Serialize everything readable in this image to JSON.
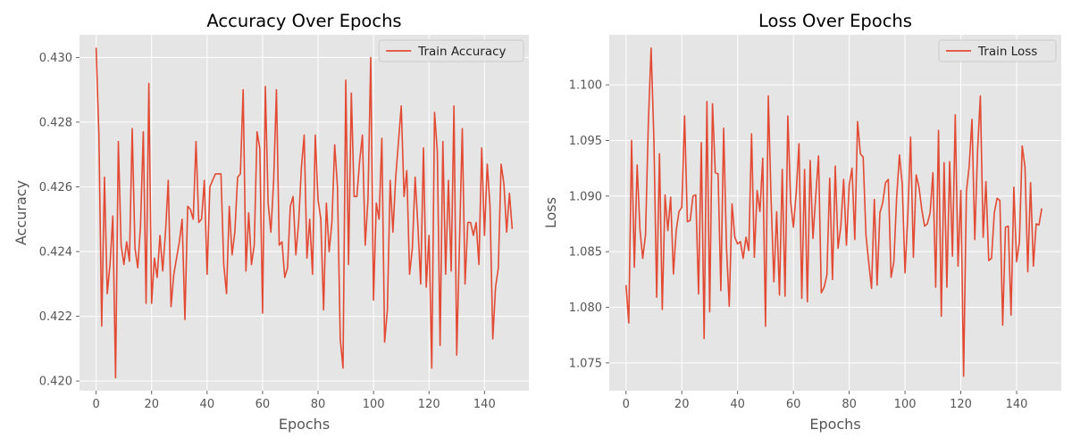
{
  "chart_data": [
    {
      "type": "line",
      "title": "Accuracy Over Epochs",
      "xlabel": "Epochs",
      "ylabel": "Accuracy",
      "xlim": [
        -6,
        156
      ],
      "ylim": [
        0.4197,
        0.4307
      ],
      "xticks": [
        0,
        20,
        40,
        60,
        80,
        100,
        120,
        140
      ],
      "yticks": [
        0.42,
        0.422,
        0.424,
        0.426,
        0.428,
        0.43
      ],
      "tick_decimals": 3,
      "grid": true,
      "legend": "top-right",
      "series": [
        {
          "name": "Train Accuracy",
          "color": "#e24a33",
          "x_start": 0,
          "values": [
            0.4303,
            0.4276,
            0.4217,
            0.4263,
            0.4227,
            0.4236,
            0.4251,
            0.4201,
            0.4274,
            0.4242,
            0.4236,
            0.4243,
            0.4237,
            0.4278,
            0.4241,
            0.4235,
            0.4248,
            0.4277,
            0.4224,
            0.4292,
            0.4224,
            0.4238,
            0.4232,
            0.4245,
            0.4234,
            0.4246,
            0.4262,
            0.4223,
            0.4233,
            0.4238,
            0.4243,
            0.425,
            0.4219,
            0.4254,
            0.4253,
            0.425,
            0.4274,
            0.4249,
            0.425,
            0.4262,
            0.4233,
            0.426,
            0.4262,
            0.4264,
            0.4264,
            0.4264,
            0.4236,
            0.4227,
            0.4254,
            0.4239,
            0.4246,
            0.4263,
            0.4264,
            0.429,
            0.4234,
            0.4252,
            0.4236,
            0.4242,
            0.4277,
            0.4272,
            0.4221,
            0.4291,
            0.4255,
            0.4246,
            0.4262,
            0.429,
            0.4242,
            0.4243,
            0.4232,
            0.4235,
            0.4254,
            0.4257,
            0.4239,
            0.4249,
            0.4266,
            0.4276,
            0.4238,
            0.425,
            0.4233,
            0.4276,
            0.4256,
            0.425,
            0.4222,
            0.4255,
            0.424,
            0.4249,
            0.4273,
            0.426,
            0.4213,
            0.4204,
            0.4293,
            0.4236,
            0.4289,
            0.4257,
            0.4257,
            0.4268,
            0.4276,
            0.4242,
            0.4256,
            0.43,
            0.4225,
            0.4255,
            0.425,
            0.4275,
            0.4212,
            0.4222,
            0.4262,
            0.4246,
            0.4263,
            0.4274,
            0.4285,
            0.4257,
            0.4265,
            0.4233,
            0.4241,
            0.4263,
            0.4248,
            0.423,
            0.4272,
            0.4229,
            0.4245,
            0.4204,
            0.4283,
            0.4271,
            0.4211,
            0.4274,
            0.4233,
            0.4262,
            0.4234,
            0.4285,
            0.4208,
            0.4243,
            0.4278,
            0.423,
            0.4249,
            0.4249,
            0.4245,
            0.4249,
            0.4236,
            0.4272,
            0.4245,
            0.4267,
            0.4254,
            0.4213,
            0.4229,
            0.4235,
            0.4267,
            0.4261,
            0.4246,
            0.4258,
            0.4247
          ]
        }
      ]
    },
    {
      "type": "line",
      "title": "Loss Over Epochs",
      "xlabel": "Epochs",
      "ylabel": "Loss",
      "xlim": [
        -6,
        156
      ],
      "ylim": [
        1.0725,
        1.1045
      ],
      "xticks": [
        0,
        20,
        40,
        60,
        80,
        100,
        120,
        140
      ],
      "yticks": [
        1.075,
        1.08,
        1.085,
        1.09,
        1.095,
        1.1
      ],
      "tick_decimals": 3,
      "grid": true,
      "legend": "top-right",
      "series": [
        {
          "name": "Train Loss",
          "color": "#e24a33",
          "x_start": 0,
          "values": [
            1.082,
            1.0786,
            1.095,
            1.0836,
            1.0928,
            1.087,
            1.0844,
            1.0865,
            1.0965,
            1.1033,
            1.0951,
            1.0809,
            1.0938,
            1.0798,
            1.0901,
            1.0869,
            1.0899,
            1.083,
            1.0869,
            1.0886,
            1.089,
            1.0972,
            1.0877,
            1.0878,
            1.09,
            1.0901,
            1.0812,
            1.0948,
            1.0772,
            1.0985,
            1.0796,
            1.0983,
            1.0921,
            1.092,
            1.0815,
            1.0961,
            1.0855,
            1.0801,
            1.0893,
            1.0863,
            1.0857,
            1.0859,
            1.0844,
            1.0863,
            1.0851,
            1.0956,
            1.0845,
            1.0905,
            1.0886,
            1.0934,
            1.0783,
            1.099,
            1.0897,
            1.0823,
            1.0886,
            1.0811,
            1.0924,
            1.081,
            1.0972,
            1.0895,
            1.0872,
            1.0903,
            1.0947,
            1.0808,
            1.0924,
            1.0805,
            1.0932,
            1.0862,
            1.09,
            1.0936,
            1.0813,
            1.0818,
            1.0829,
            1.0916,
            1.0825,
            1.0927,
            1.0853,
            1.0873,
            1.0915,
            1.0856,
            1.091,
            1.0925,
            1.0861,
            1.0967,
            1.0938,
            1.0935,
            1.0865,
            1.084,
            1.0817,
            1.0897,
            1.082,
            1.0885,
            1.0894,
            1.0912,
            1.0915,
            1.0827,
            1.0841,
            1.0899,
            1.0937,
            1.0911,
            1.0831,
            1.0883,
            1.0953,
            1.0845,
            1.0919,
            1.0908,
            1.0888,
            1.0873,
            1.0875,
            1.0885,
            1.0921,
            1.0818,
            1.0959,
            1.0792,
            1.093,
            1.0818,
            1.0931,
            1.0846,
            1.0973,
            1.0837,
            1.0905,
            1.0738,
            1.0904,
            1.0927,
            1.0969,
            1.0861,
            1.0941,
            1.099,
            1.0863,
            1.0913,
            1.0842,
            1.0844,
            1.0885,
            1.0898,
            1.0896,
            1.0784,
            1.0872,
            1.0873,
            1.0793,
            1.0908,
            1.0841,
            1.0859,
            1.0945,
            1.0926,
            1.0832,
            1.0912,
            1.0837,
            1.0875,
            1.0874,
            1.0889
          ]
        }
      ]
    }
  ]
}
